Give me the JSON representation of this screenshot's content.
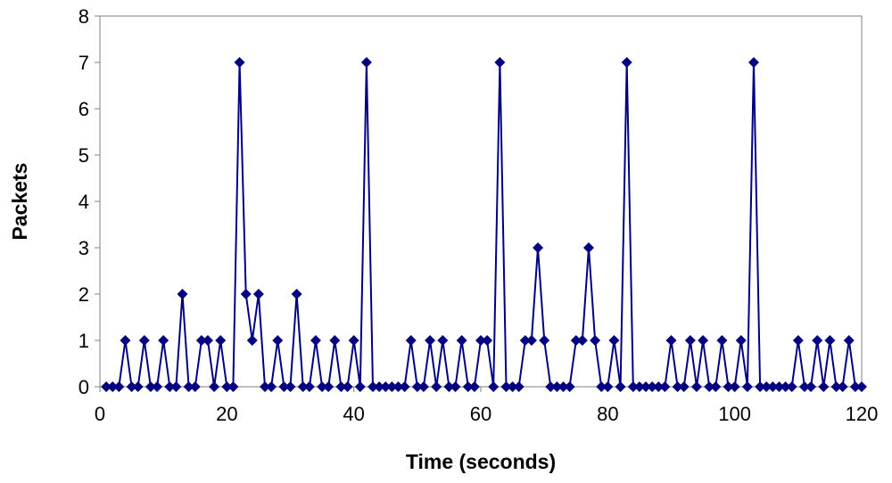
{
  "chart_data": {
    "type": "line",
    "title": "",
    "xlabel": "Time (seconds)",
    "ylabel": "Packets",
    "xlim": [
      0,
      120
    ],
    "ylim": [
      0,
      8
    ],
    "xticks": [
      0,
      20,
      40,
      60,
      80,
      100,
      120
    ],
    "yticks": [
      0,
      1,
      2,
      3,
      4,
      5,
      6,
      7,
      8
    ],
    "grid": false,
    "legend": false,
    "marker": "diamond",
    "color": "#000080",
    "series": [
      {
        "x": [
          1,
          2,
          3,
          4,
          5,
          6,
          7,
          8,
          9,
          10,
          11,
          12,
          13,
          14,
          15,
          16,
          17,
          18,
          19,
          20,
          21,
          22,
          23,
          24,
          25,
          26,
          27,
          28,
          29,
          30,
          31,
          32,
          33,
          34,
          35,
          36,
          37,
          38,
          39,
          40,
          41,
          42,
          43,
          44,
          45,
          46,
          47,
          48,
          49,
          50,
          51,
          52,
          53,
          54,
          55,
          56,
          57,
          58,
          59,
          60,
          61,
          62,
          63,
          64,
          65,
          66,
          67,
          68,
          69,
          70,
          71,
          72,
          73,
          74,
          75,
          76,
          77,
          78,
          79,
          80,
          81,
          82,
          83,
          84,
          85,
          86,
          87,
          88,
          89,
          90,
          91,
          92,
          93,
          94,
          95,
          96,
          97,
          98,
          99,
          100,
          101,
          102,
          103,
          104,
          105,
          106,
          107,
          108,
          109,
          110,
          111,
          112,
          113,
          114,
          115,
          116,
          117,
          118,
          119,
          120
        ],
        "values": [
          0,
          0,
          0,
          1,
          0,
          0,
          1,
          0,
          0,
          1,
          0,
          0,
          2,
          0,
          0,
          1,
          1,
          0,
          1,
          0,
          0,
          7,
          2,
          1,
          2,
          0,
          0,
          1,
          0,
          0,
          2,
          0,
          0,
          1,
          0,
          0,
          1,
          0,
          0,
          1,
          0,
          7,
          0,
          0,
          0,
          0,
          0,
          0,
          1,
          0,
          0,
          1,
          0,
          1,
          0,
          0,
          1,
          0,
          0,
          1,
          1,
          0,
          7,
          0,
          0,
          0,
          1,
          1,
          3,
          1,
          0,
          0,
          0,
          0,
          1,
          1,
          3,
          1,
          0,
          0,
          1,
          0,
          7,
          0,
          0,
          0,
          0,
          0,
          0,
          1,
          0,
          0,
          1,
          0,
          1,
          0,
          0,
          1,
          0,
          0,
          1,
          0,
          7,
          0,
          0,
          0,
          0,
          0,
          0,
          1,
          0,
          0,
          1,
          0,
          1,
          0,
          0,
          1,
          0,
          0
        ]
      }
    ]
  }
}
